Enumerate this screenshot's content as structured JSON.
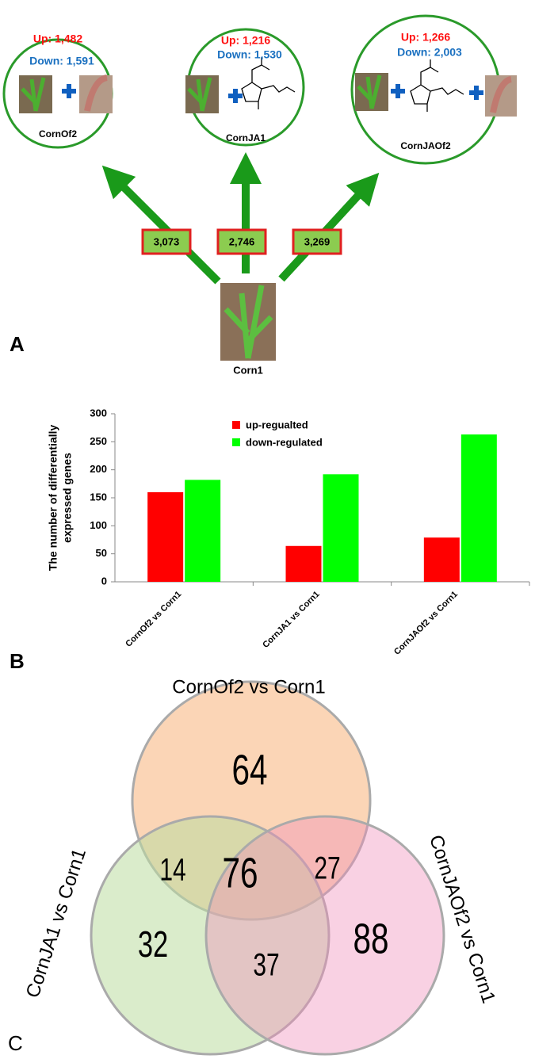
{
  "panel_a": {
    "label": "A",
    "nodes": [
      {
        "up": "Up: 1,482",
        "down": "Down: 1,591",
        "label": "CornOf2"
      },
      {
        "up": "Up: 1,216",
        "down": "Down: 1,530",
        "label": "CornJA1"
      },
      {
        "up": "Up: 1,266",
        "down": "Down: 2,003",
        "label": "CornJAOf2"
      }
    ],
    "edges": [
      "3,073",
      "2,746",
      "3,269"
    ],
    "root": "Corn1"
  },
  "chart_data": {
    "type": "bar",
    "label": "B",
    "y_label": [
      "The number of differentially",
      "expressed genes"
    ],
    "categories": [
      "CornOf2 vs Corn1",
      "CornJA1 vs Corn1",
      "CornJAOf2 vs Corn1"
    ],
    "series": [
      {
        "name": "up-regualted",
        "color": "#ff0000",
        "values": [
          160,
          64,
          79
        ]
      },
      {
        "name": "down-regulated",
        "color": "#00ff00",
        "values": [
          182,
          192,
          263
        ]
      }
    ],
    "ylim": [
      0,
      300
    ],
    "yticks": [
      0,
      50,
      100,
      150,
      200,
      250,
      300
    ]
  },
  "panel_c": {
    "label": "C",
    "sets": [
      "CornOf2 vs Corn1",
      "CornJA1 vs Corn1",
      "CornJAOf2 vs Corn1"
    ],
    "regions": [
      "64",
      "14",
      "76",
      "27",
      "32",
      "37",
      "88"
    ]
  }
}
